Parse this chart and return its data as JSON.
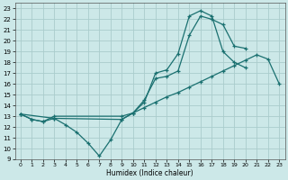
{
  "bg_color": "#cce8e8",
  "grid_color": "#aacccc",
  "line_color": "#1a7070",
  "xlabel": "Humidex (Indice chaleur)",
  "xlim": [
    -0.5,
    23.5
  ],
  "ylim": [
    9,
    23.5
  ],
  "xticks": [
    0,
    1,
    2,
    3,
    4,
    5,
    6,
    7,
    8,
    9,
    10,
    11,
    12,
    13,
    14,
    15,
    16,
    17,
    18,
    19,
    20,
    21,
    22,
    23
  ],
  "yticks": [
    9,
    10,
    11,
    12,
    13,
    14,
    15,
    16,
    17,
    18,
    19,
    20,
    21,
    22,
    23
  ],
  "line1_x": [
    0,
    1,
    2,
    3,
    4,
    5,
    6,
    7,
    8,
    9,
    10,
    11,
    12,
    13,
    14,
    15,
    16,
    17,
    18,
    19,
    20
  ],
  "line1_y": [
    13.2,
    12.7,
    12.5,
    12.8,
    12.2,
    11.5,
    10.5,
    9.3,
    10.8,
    12.7,
    13.3,
    14.3,
    17.0,
    17.3,
    18.8,
    22.3,
    22.8,
    22.3,
    19.0,
    18.0,
    17.5
  ],
  "line2_x": [
    0,
    1,
    2,
    3,
    9,
    10,
    11,
    12,
    13,
    14,
    15,
    16,
    17,
    18,
    19,
    20,
    21,
    22,
    23
  ],
  "line2_y": [
    13.2,
    12.7,
    12.5,
    13.0,
    13.0,
    13.3,
    13.8,
    14.3,
    14.8,
    15.2,
    15.7,
    16.2,
    16.7,
    17.2,
    17.7,
    18.2,
    18.7,
    18.3,
    16.0
  ],
  "line3_x": [
    0,
    3,
    9,
    10,
    11,
    12,
    13,
    14,
    15,
    16,
    17,
    18,
    19,
    20
  ],
  "line3_y": [
    13.2,
    12.8,
    12.7,
    13.3,
    14.5,
    16.5,
    16.7,
    17.2,
    20.5,
    22.3,
    22.0,
    21.5,
    19.5,
    19.3
  ]
}
